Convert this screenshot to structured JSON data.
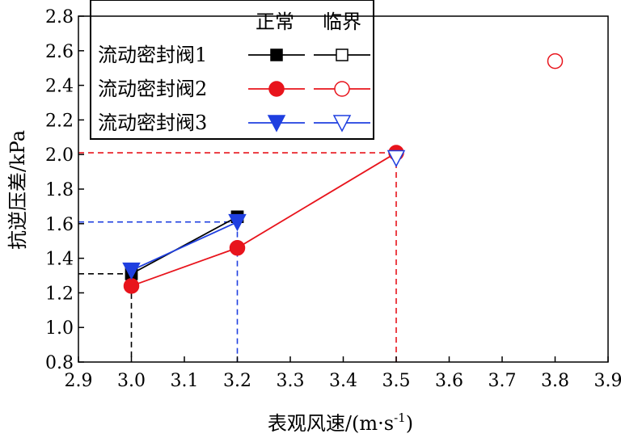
{
  "chart_data": {
    "type": "line",
    "xlabel": "表观风速/(m·s",
    "xlabel_sup": "-1",
    "xlabel_end": ")",
    "ylabel": "抗逆压差/kPa",
    "xlim": [
      2.9,
      3.9
    ],
    "ylim": [
      0.8,
      2.8
    ],
    "xticks": [
      "2.9",
      "3.0",
      "3.1",
      "3.2",
      "3.3",
      "3.4",
      "3.5",
      "3.6",
      "3.7",
      "3.8",
      "3.9"
    ],
    "yticks": [
      "0.8",
      "1.0",
      "1.2",
      "1.4",
      "1.6",
      "1.8",
      "2.0",
      "2.2",
      "2.4",
      "2.6",
      "2.8"
    ],
    "legend": {
      "position": "top-left",
      "col_headers": [
        "正常",
        "临界"
      ]
    },
    "series": [
      {
        "name": "流动密封阀1",
        "color": "#000000",
        "marker": "square",
        "normal": [
          {
            "x": 3.0,
            "y": 1.31
          },
          {
            "x": 3.2,
            "y": 1.64
          }
        ],
        "critical": [
          {
            "x": 3.0,
            "y": 1.31
          },
          {
            "x": 3.2,
            "y": 1.64
          }
        ]
      },
      {
        "name": "流动密封阀2",
        "color": "#e8141c",
        "marker": "circle",
        "normal": [
          {
            "x": 3.0,
            "y": 1.24
          },
          {
            "x": 3.2,
            "y": 1.46
          },
          {
            "x": 3.5,
            "y": 2.01
          }
        ],
        "critical": [
          {
            "x": 3.8,
            "y": 2.54
          }
        ]
      },
      {
        "name": "流动密封阀3",
        "color": "#1f3fe0",
        "marker": "triangle-down",
        "normal": [
          {
            "x": 3.0,
            "y": 1.33
          },
          {
            "x": 3.2,
            "y": 1.61
          }
        ],
        "critical": [
          {
            "x": 3.5,
            "y": 1.98
          }
        ]
      }
    ],
    "reference_lines": [
      {
        "color": "#000000",
        "x": 3.0,
        "y": 1.31
      },
      {
        "color": "#1f3fe0",
        "x": 3.2,
        "y": 1.61
      },
      {
        "color": "#e8141c",
        "x": 3.5,
        "y": 2.01
      }
    ]
  }
}
